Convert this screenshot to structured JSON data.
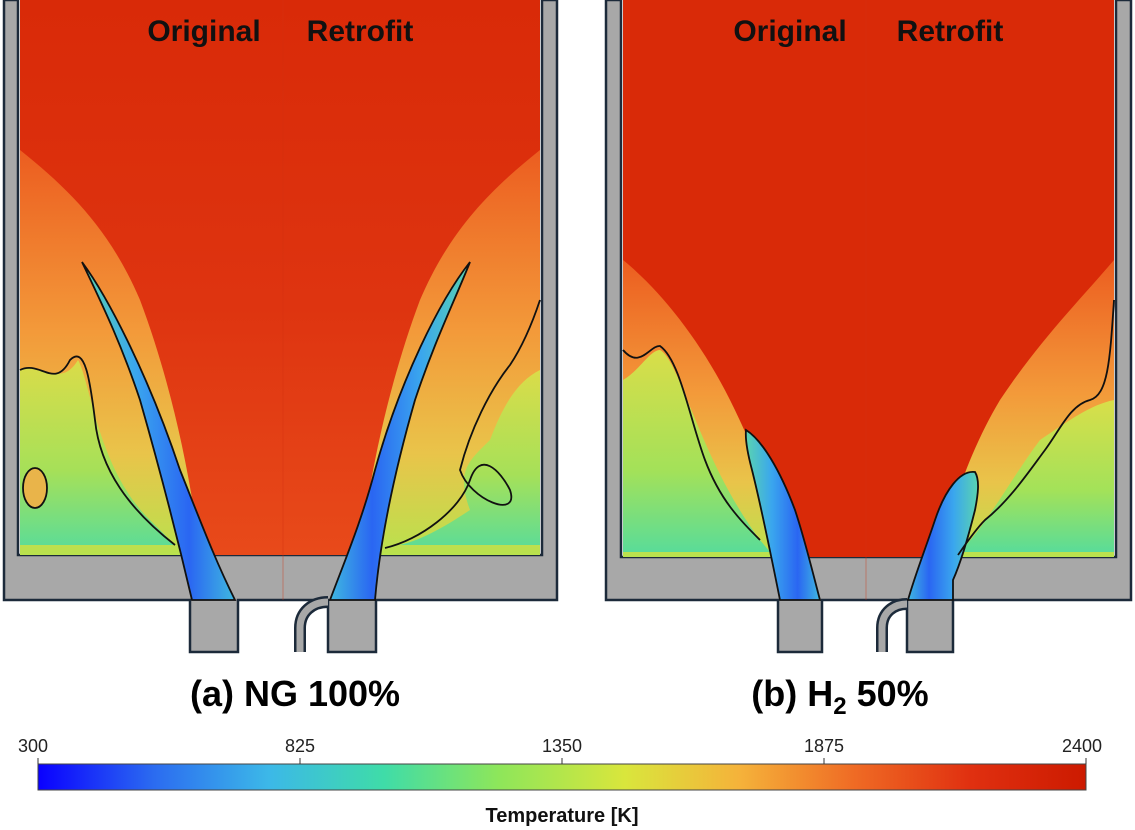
{
  "panels": [
    {
      "id": "a",
      "label_prefix": "(a) NG 100%",
      "left_label": "Original",
      "right_label": "Retrofit"
    },
    {
      "id": "b",
      "label_prefix": "(b) H",
      "label_sub": "2",
      "label_suffix": " 50%",
      "left_label": "Original",
      "right_label": "Retrofit"
    }
  ],
  "colorbar": {
    "title": "Temperature [K]",
    "min": 300,
    "max": 2400,
    "ticks": [
      "300",
      "825",
      "1350",
      "1875",
      "2400"
    ],
    "colors": [
      "#0a00ff",
      "#2b6bf0",
      "#3cb8e8",
      "#3fdca8",
      "#8ee65a",
      "#d9e63c",
      "#f5b23a",
      "#ef6a24",
      "#e03010",
      "#cc1a00"
    ]
  }
}
